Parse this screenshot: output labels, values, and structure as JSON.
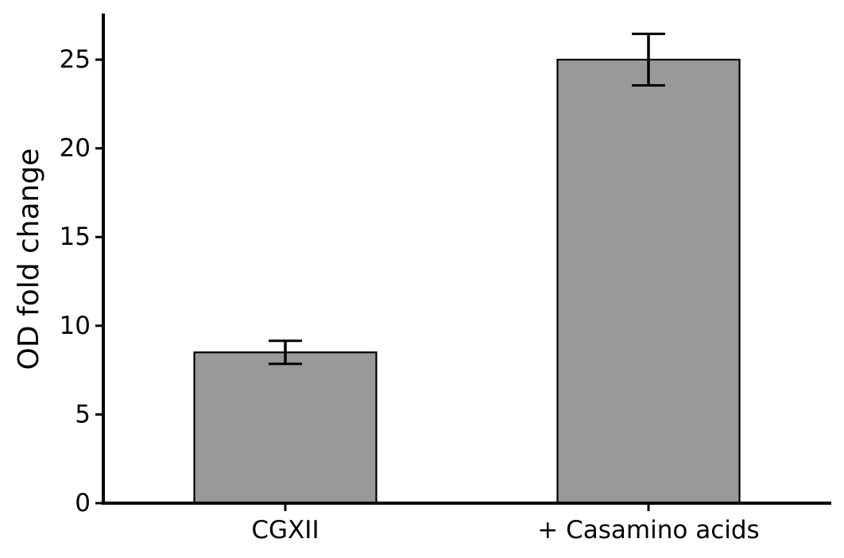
{
  "chart_data": {
    "type": "bar",
    "categories": [
      "CGXII",
      "+ Casamino acids"
    ],
    "values": [
      8.5,
      25.0
    ],
    "errors": [
      0.65,
      1.45
    ],
    "title": "",
    "xlabel": "",
    "ylabel": "OD fold change",
    "ylim": [
      0,
      27.6
    ],
    "yticks": [
      0,
      5,
      10,
      15,
      20,
      25
    ],
    "ytick_labels": [
      "0",
      "5",
      "10",
      "15",
      "20",
      "25"
    ],
    "grid": false,
    "legend": "none",
    "colors": {
      "bar_fill": "#999999",
      "bar_edge": "#000000",
      "axis": "#000000"
    }
  }
}
